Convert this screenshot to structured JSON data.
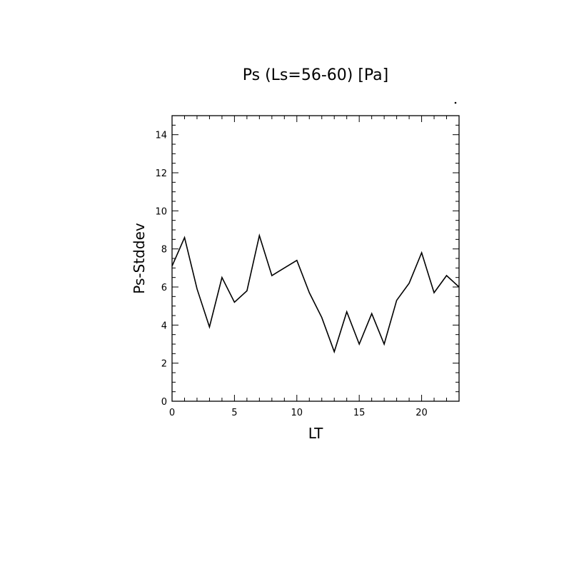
{
  "chart_data": {
    "type": "line",
    "title": "Ps (Ls=56-60) [Pa]",
    "xlabel": "LT",
    "ylabel": "Ps-Stddev",
    "xlim": [
      0,
      23
    ],
    "ylim": [
      0,
      15
    ],
    "x_major_ticks": [
      0,
      5,
      10,
      15,
      20
    ],
    "x_tick_labels": [
      "0",
      "5",
      "10",
      "15",
      "20"
    ],
    "y_major_ticks": [
      0,
      2,
      4,
      6,
      8,
      10,
      12,
      14
    ],
    "y_tick_labels": [
      "0",
      "2",
      "4",
      "6",
      "8",
      "10",
      "12",
      "14"
    ],
    "grid": false,
    "colors": {
      "line": "#000000",
      "axes": "#000000"
    },
    "x": [
      0,
      1,
      2,
      3,
      4,
      5,
      6,
      7,
      8,
      9,
      10,
      11,
      12,
      13,
      14,
      15,
      16,
      17,
      18,
      19,
      20,
      21,
      22,
      23
    ],
    "series": [
      {
        "values": [
          7.1,
          8.6,
          5.9,
          3.9,
          6.5,
          5.2,
          5.8,
          8.7,
          6.6,
          7.0,
          7.4,
          5.7,
          4.4,
          2.6,
          4.7,
          3.0,
          4.6,
          3.0,
          5.3,
          6.2,
          7.8,
          5.7,
          6.6,
          6.0
        ]
      }
    ]
  }
}
